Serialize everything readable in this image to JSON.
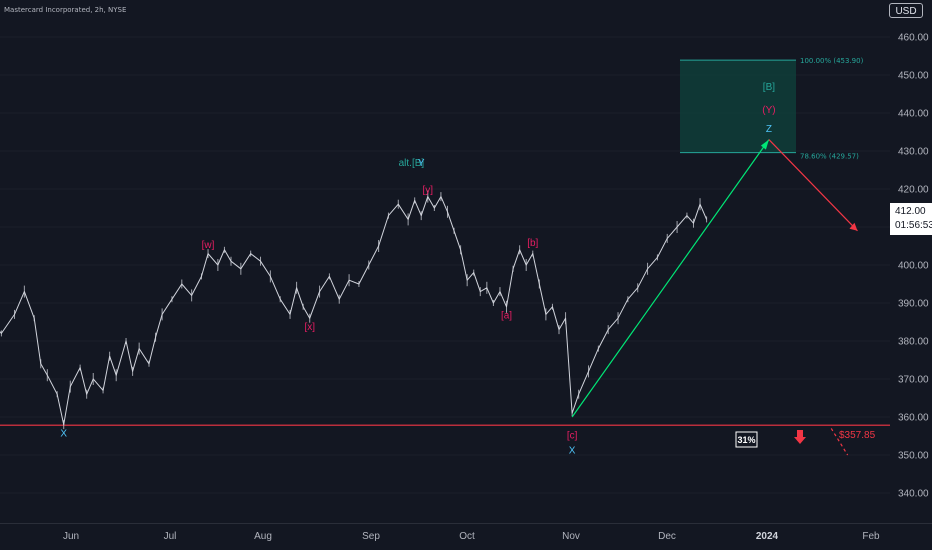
{
  "header": {
    "title": "Mastercard Incorporated, 2h, NYSE",
    "currency": "USD"
  },
  "colors": {
    "background": "#131722",
    "price": "#d1d4dc",
    "up_arrow": "#00e676",
    "down_arrow": "#f23645",
    "support": "#f23645",
    "target_zone": "#0f3d38",
    "wave_magenta": "#e91e63",
    "wave_cyan": "#4fc3f7",
    "wave_teal": "#26a69a"
  },
  "current_price": {
    "value": "412.00",
    "countdown": "01:56:53"
  },
  "chart_data": {
    "type": "line",
    "x_axis_labels": [
      "Jun",
      "Jul",
      "Aug",
      "Sep",
      "Oct",
      "Nov",
      "Dec",
      "2024",
      "Feb"
    ],
    "y_ticks": [
      340,
      350,
      360,
      370,
      380,
      390,
      400,
      410,
      420,
      430,
      440,
      450,
      460
    ],
    "y_tick_labels": [
      "340.00",
      "350.00",
      "360.00",
      "370.00",
      "380.00",
      "390.00",
      "400.00",
      "410.00",
      "420.00",
      "430.00",
      "440.00",
      "450.00",
      "460.00"
    ],
    "ylim": [
      334,
      462
    ],
    "price_series": [
      {
        "x": "2023-05-01",
        "y": 384
      },
      {
        "x": "2023-05-04",
        "y": 381
      },
      {
        "x": "2023-05-08",
        "y": 386
      },
      {
        "x": "2023-05-12",
        "y": 382
      },
      {
        "x": "2023-05-16",
        "y": 387
      },
      {
        "x": "2023-05-19",
        "y": 393
      },
      {
        "x": "2023-05-22",
        "y": 386
      },
      {
        "x": "2023-05-24",
        "y": 374
      },
      {
        "x": "2023-05-26",
        "y": 371
      },
      {
        "x": "2023-05-29",
        "y": 366
      },
      {
        "x": "2023-05-31",
        "y": 358
      },
      {
        "x": "2023-06-02",
        "y": 368
      },
      {
        "x": "2023-06-05",
        "y": 373
      },
      {
        "x": "2023-06-07",
        "y": 366
      },
      {
        "x": "2023-06-09",
        "y": 370
      },
      {
        "x": "2023-06-12",
        "y": 367
      },
      {
        "x": "2023-06-14",
        "y": 376
      },
      {
        "x": "2023-06-16",
        "y": 371
      },
      {
        "x": "2023-06-19",
        "y": 380
      },
      {
        "x": "2023-06-21",
        "y": 372
      },
      {
        "x": "2023-06-23",
        "y": 378
      },
      {
        "x": "2023-06-26",
        "y": 374
      },
      {
        "x": "2023-06-28",
        "y": 381
      },
      {
        "x": "2023-06-30",
        "y": 387
      },
      {
        "x": "2023-07-03",
        "y": 391
      },
      {
        "x": "2023-07-06",
        "y": 395
      },
      {
        "x": "2023-07-09",
        "y": 392
      },
      {
        "x": "2023-07-12",
        "y": 397
      },
      {
        "x": "2023-07-14",
        "y": 403
      },
      {
        "x": "2023-07-17",
        "y": 400
      },
      {
        "x": "2023-07-19",
        "y": 404
      },
      {
        "x": "2023-07-21",
        "y": 401
      },
      {
        "x": "2023-07-24",
        "y": 399
      },
      {
        "x": "2023-07-27",
        "y": 403
      },
      {
        "x": "2023-07-30",
        "y": 401
      },
      {
        "x": "2023-08-02",
        "y": 397
      },
      {
        "x": "2023-08-05",
        "y": 391
      },
      {
        "x": "2023-08-08",
        "y": 387
      },
      {
        "x": "2023-08-10",
        "y": 394
      },
      {
        "x": "2023-08-12",
        "y": 389
      },
      {
        "x": "2023-08-14",
        "y": 386
      },
      {
        "x": "2023-08-17",
        "y": 393
      },
      {
        "x": "2023-08-20",
        "y": 397
      },
      {
        "x": "2023-08-23",
        "y": 391
      },
      {
        "x": "2023-08-26",
        "y": 396
      },
      {
        "x": "2023-08-29",
        "y": 395
      },
      {
        "x": "2023-09-01",
        "y": 400
      },
      {
        "x": "2023-09-04",
        "y": 405
      },
      {
        "x": "2023-09-07",
        "y": 413
      },
      {
        "x": "2023-09-10",
        "y": 416
      },
      {
        "x": "2023-09-13",
        "y": 412
      },
      {
        "x": "2023-09-15",
        "y": 417
      },
      {
        "x": "2023-09-17",
        "y": 413
      },
      {
        "x": "2023-09-19",
        "y": 418
      },
      {
        "x": "2023-09-21",
        "y": 415
      },
      {
        "x": "2023-09-23",
        "y": 418
      },
      {
        "x": "2023-09-25",
        "y": 414
      },
      {
        "x": "2023-09-27",
        "y": 409
      },
      {
        "x": "2023-09-29",
        "y": 404
      },
      {
        "x": "2023-10-01",
        "y": 396
      },
      {
        "x": "2023-10-03",
        "y": 398
      },
      {
        "x": "2023-10-05",
        "y": 393
      },
      {
        "x": "2023-10-07",
        "y": 394
      },
      {
        "x": "2023-10-09",
        "y": 390
      },
      {
        "x": "2023-10-11",
        "y": 393
      },
      {
        "x": "2023-10-13",
        "y": 389
      },
      {
        "x": "2023-10-15",
        "y": 399
      },
      {
        "x": "2023-10-17",
        "y": 404
      },
      {
        "x": "2023-10-19",
        "y": 400
      },
      {
        "x": "2023-10-21",
        "y": 403
      },
      {
        "x": "2023-10-23",
        "y": 395
      },
      {
        "x": "2023-10-25",
        "y": 387
      },
      {
        "x": "2023-10-27",
        "y": 389
      },
      {
        "x": "2023-10-29",
        "y": 383
      },
      {
        "x": "2023-10-31",
        "y": 386
      },
      {
        "x": "2023-11-02",
        "y": 361
      },
      {
        "x": "2023-11-04",
        "y": 366
      },
      {
        "x": "2023-11-07",
        "y": 372
      },
      {
        "x": "2023-11-10",
        "y": 378
      },
      {
        "x": "2023-11-13",
        "y": 383
      },
      {
        "x": "2023-11-16",
        "y": 386
      },
      {
        "x": "2023-11-19",
        "y": 391
      },
      {
        "x": "2023-11-22",
        "y": 394
      },
      {
        "x": "2023-11-25",
        "y": 399
      },
      {
        "x": "2023-11-28",
        "y": 402
      },
      {
        "x": "2023-12-01",
        "y": 407
      },
      {
        "x": "2023-12-04",
        "y": 410
      },
      {
        "x": "2023-12-07",
        "y": 413
      },
      {
        "x": "2023-12-09",
        "y": 411
      },
      {
        "x": "2023-12-11",
        "y": 416
      },
      {
        "x": "2023-12-13",
        "y": 412
      }
    ]
  },
  "levels": {
    "support": {
      "price": 357.85,
      "label": "$357.85"
    },
    "fib_100": {
      "price": 453.9,
      "label": "100.00% (453.90)"
    },
    "fib_786": {
      "price": 429.57,
      "label": "78.60% (429.57)"
    },
    "probability_badge": "31%"
  },
  "wave_labels": [
    {
      "text": "X",
      "color": "cyan",
      "x": "2023-05-31",
      "y": 357.5,
      "pos": "below"
    },
    {
      "text": "[w]",
      "color": "magenta",
      "x": "2023-07-14",
      "y": 404.5,
      "pos": "above"
    },
    {
      "text": "[x]",
      "color": "magenta",
      "x": "2023-08-14",
      "y": 385.5,
      "pos": "below"
    },
    {
      "text": "alt.[B]",
      "color": "teal",
      "x": "2023-09-14",
      "y": 426,
      "pos": "label"
    },
    {
      "text": "Y",
      "color": "cyan",
      "x": "2023-09-17",
      "y": 426,
      "pos": "label"
    },
    {
      "text": "[y]",
      "color": "magenta",
      "x": "2023-09-19",
      "y": 419,
      "pos": "above"
    },
    {
      "text": "[a]",
      "color": "magenta",
      "x": "2023-10-13",
      "y": 388.5,
      "pos": "below"
    },
    {
      "text": "[b]",
      "color": "magenta",
      "x": "2023-10-21",
      "y": 405,
      "pos": "above"
    },
    {
      "text": "[c]",
      "color": "magenta",
      "x": "2023-11-02",
      "y": 357,
      "pos": "below"
    },
    {
      "text": "X",
      "color": "cyan",
      "x": "2023-11-02",
      "y": 353,
      "pos": "below"
    },
    {
      "text": "[B]",
      "color": "teal",
      "x": "2024-01-01",
      "y": 446,
      "pos": "label"
    },
    {
      "text": "(Y)",
      "color": "magenta",
      "x": "2024-01-01",
      "y": 440,
      "pos": "label"
    },
    {
      "text": "Z",
      "color": "cyan",
      "x": "2024-01-01",
      "y": 435,
      "pos": "label"
    }
  ],
  "projections": {
    "up": {
      "from": {
        "x": "2023-11-02",
        "y": 360
      },
      "to": {
        "x": "2024-01-01",
        "y": 433
      }
    },
    "down": {
      "from": {
        "x": "2024-01-01",
        "y": 433
      },
      "to": {
        "x": "2024-01-28",
        "y": 409
      }
    },
    "down_dashed": {
      "from": {
        "x": "2024-01-20",
        "y": 357
      },
      "to": {
        "x": "2024-01-25",
        "y": 350
      }
    }
  }
}
